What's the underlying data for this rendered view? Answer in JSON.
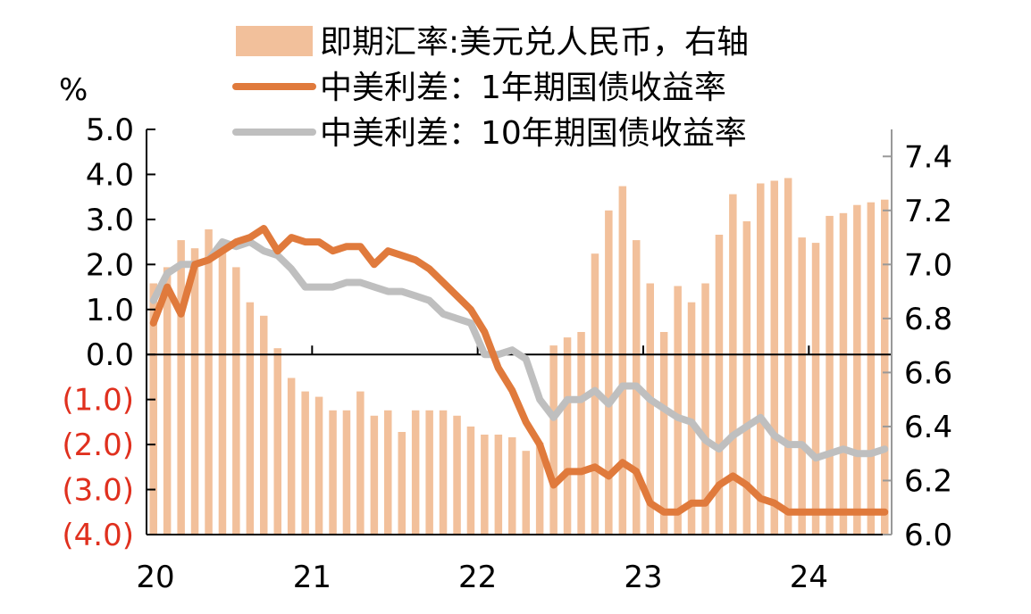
{
  "colors": {
    "bar": "#f2c09b",
    "spread_1y": "#e07a3c",
    "spread_10y": "#bfbfbf",
    "negative_label": "#e0301e",
    "axis": "#000000"
  },
  "chart_data": {
    "type": "bar+line",
    "title": "",
    "left_unit": "%",
    "legend_placement": "top-center",
    "x": [
      "2020-01",
      "2020-02",
      "2020-03",
      "2020-04",
      "2020-05",
      "2020-06",
      "2020-07",
      "2020-08",
      "2020-09",
      "2020-10",
      "2020-11",
      "2020-12",
      "2021-01",
      "2021-02",
      "2021-03",
      "2021-04",
      "2021-05",
      "2021-06",
      "2021-07",
      "2021-08",
      "2021-09",
      "2021-10",
      "2021-11",
      "2021-12",
      "2022-01",
      "2022-02",
      "2022-03",
      "2022-04",
      "2022-05",
      "2022-06",
      "2022-07",
      "2022-08",
      "2022-09",
      "2022-10",
      "2022-11",
      "2022-12",
      "2023-01",
      "2023-02",
      "2023-03",
      "2023-04",
      "2023-05",
      "2023-06",
      "2023-07",
      "2023-08",
      "2023-09",
      "2023-10",
      "2023-11",
      "2023-12",
      "2024-01",
      "2024-02",
      "2024-03",
      "2024-04",
      "2024-05",
      "2024-06"
    ],
    "xtick_labels": [
      "20",
      "21",
      "22",
      "23",
      "24"
    ],
    "left_axis": {
      "ylim": [
        -4.0,
        5.0
      ],
      "ticks": [
        5.0,
        4.0,
        3.0,
        2.0,
        1.0,
        0.0,
        -1.0,
        -2.0,
        -3.0,
        -4.0
      ],
      "tick_labels": [
        "5.0",
        "4.0",
        "3.0",
        "2.0",
        "1.0",
        "0.0",
        "(1.0)",
        "(2.0)",
        "(3.0)",
        "(4.0)"
      ]
    },
    "right_axis": {
      "ylim": [
        6.0,
        7.5
      ],
      "ticks": [
        7.4,
        7.2,
        7.0,
        6.8,
        6.6,
        6.4,
        6.2,
        6.0
      ],
      "tick_labels": [
        "7.4",
        "7.2",
        "7.0",
        "6.8",
        "6.6",
        "6.4",
        "6.2",
        "6.0"
      ]
    },
    "series": [
      {
        "name": "即期汇率:美元兑人民币，右轴",
        "type": "bar",
        "axis": "right",
        "values": [
          6.93,
          6.99,
          7.09,
          7.06,
          7.13,
          7.07,
          6.99,
          6.86,
          6.81,
          6.69,
          6.58,
          6.53,
          6.51,
          6.46,
          6.46,
          6.53,
          6.44,
          6.46,
          6.38,
          6.46,
          6.46,
          6.46,
          6.44,
          6.4,
          6.37,
          6.37,
          6.36,
          6.31,
          6.34,
          6.7,
          6.73,
          6.75,
          7.04,
          7.2,
          7.29,
          7.09,
          6.93,
          6.75,
          6.92,
          6.86,
          6.93,
          7.11,
          7.26,
          7.16,
          7.3,
          7.31,
          7.32,
          7.1,
          7.08,
          7.18,
          7.19,
          7.22,
          7.23,
          7.24
        ]
      },
      {
        "name": "中美利差：1年期国债收益率",
        "type": "line",
        "axis": "left",
        "values": [
          0.7,
          1.5,
          0.9,
          2.0,
          2.1,
          2.3,
          2.5,
          2.6,
          2.8,
          2.3,
          2.6,
          2.5,
          2.5,
          2.3,
          2.4,
          2.4,
          2.0,
          2.3,
          2.2,
          2.1,
          1.9,
          1.6,
          1.3,
          1.0,
          0.5,
          -0.3,
          -0.8,
          -1.5,
          -2.0,
          -2.9,
          -2.6,
          -2.6,
          -2.5,
          -2.7,
          -2.4,
          -2.6,
          -3.3,
          -3.5,
          -3.5,
          -3.3,
          -3.3,
          -2.9,
          -2.7,
          -2.9,
          -3.2,
          -3.3,
          -3.5,
          -3.5,
          -3.5,
          -3.5,
          -3.5,
          -3.5,
          -3.5,
          -3.5
        ]
      },
      {
        "name": "中美利差：10年期国债收益率",
        "type": "line",
        "axis": "left",
        "values": [
          1.2,
          1.8,
          2.0,
          2.0,
          2.1,
          2.5,
          2.4,
          2.5,
          2.3,
          2.2,
          1.9,
          1.5,
          1.5,
          1.5,
          1.6,
          1.6,
          1.5,
          1.4,
          1.4,
          1.3,
          1.2,
          0.9,
          0.8,
          0.7,
          0.0,
          0.0,
          0.1,
          -0.1,
          -1.0,
          -1.4,
          -1.0,
          -1.0,
          -0.8,
          -1.1,
          -0.7,
          -0.7,
          -1.0,
          -1.2,
          -1.4,
          -1.5,
          -1.9,
          -2.1,
          -1.8,
          -1.6,
          -1.4,
          -1.8,
          -2.0,
          -2.0,
          -2.3,
          -2.2,
          -2.1,
          -2.2,
          -2.2,
          -2.1
        ]
      }
    ]
  }
}
